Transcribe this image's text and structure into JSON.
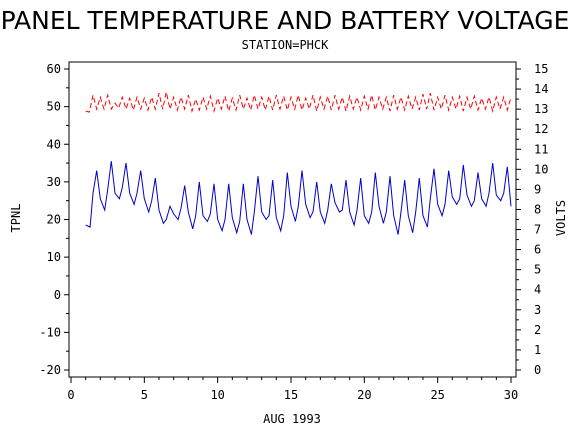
{
  "chart_data": {
    "type": "line",
    "title": "PANEL TEMPERATURE AND BATTERY VOLTAGE",
    "subtitle": "STATION=PHCK",
    "xlabel": "AUG 1993",
    "ylabel_left": "TPNL",
    "ylabel_right": "VOLTS",
    "xlim": [
      0,
      30
    ],
    "ylim_left": [
      -20,
      60
    ],
    "ylim_right": [
      0,
      15
    ],
    "x_ticks": [
      0,
      5,
      10,
      15,
      20,
      25,
      30
    ],
    "y_left_ticks": [
      -20,
      -10,
      0,
      10,
      20,
      30,
      40,
      50,
      60
    ],
    "y_right_ticks": [
      0,
      1,
      2,
      3,
      4,
      5,
      6,
      7,
      8,
      9,
      10,
      11,
      12,
      13,
      14,
      15
    ],
    "series": [
      {
        "axis": "left",
        "color": "#0000cc",
        "style": "solid",
        "points": [
          [
            1.0,
            18.5
          ],
          [
            1.3,
            18.0
          ],
          [
            1.5,
            27.0
          ],
          [
            1.75,
            33.0
          ],
          [
            2.0,
            25.5
          ],
          [
            2.3,
            22.5
          ],
          [
            2.5,
            28.0
          ],
          [
            2.75,
            35.5
          ],
          [
            3.0,
            27.0
          ],
          [
            3.3,
            25.5
          ],
          [
            3.5,
            28.5
          ],
          [
            3.75,
            35.0
          ],
          [
            4.0,
            27.0
          ],
          [
            4.3,
            24.0
          ],
          [
            4.5,
            27.0
          ],
          [
            4.75,
            33.0
          ],
          [
            5.0,
            25.5
          ],
          [
            5.3,
            22.0
          ],
          [
            5.5,
            25.0
          ],
          [
            5.75,
            31.0
          ],
          [
            6.0,
            22.5
          ],
          [
            6.3,
            19.0
          ],
          [
            6.5,
            20.0
          ],
          [
            6.75,
            23.5
          ],
          [
            7.0,
            21.5
          ],
          [
            7.3,
            20.0
          ],
          [
            7.5,
            23.0
          ],
          [
            7.75,
            29.0
          ],
          [
            8.0,
            22.0
          ],
          [
            8.3,
            17.5
          ],
          [
            8.5,
            21.0
          ],
          [
            8.75,
            30.0
          ],
          [
            9.0,
            21.0
          ],
          [
            9.3,
            19.5
          ],
          [
            9.5,
            21.5
          ],
          [
            9.75,
            29.5
          ],
          [
            10.0,
            20.0
          ],
          [
            10.3,
            17.0
          ],
          [
            10.5,
            20.0
          ],
          [
            10.75,
            29.5
          ],
          [
            11.0,
            20.5
          ],
          [
            11.3,
            16.5
          ],
          [
            11.5,
            19.5
          ],
          [
            11.75,
            29.5
          ],
          [
            12.0,
            20.0
          ],
          [
            12.3,
            16.0
          ],
          [
            12.5,
            22.0
          ],
          [
            12.75,
            31.5
          ],
          [
            13.0,
            22.0
          ],
          [
            13.3,
            20.0
          ],
          [
            13.5,
            21.0
          ],
          [
            13.75,
            30.5
          ],
          [
            14.0,
            20.5
          ],
          [
            14.3,
            17.0
          ],
          [
            14.5,
            21.0
          ],
          [
            14.75,
            32.5
          ],
          [
            15.0,
            23.5
          ],
          [
            15.3,
            19.5
          ],
          [
            15.5,
            23.5
          ],
          [
            15.75,
            33.0
          ],
          [
            16.0,
            24.0
          ],
          [
            16.3,
            20.5
          ],
          [
            16.5,
            22.0
          ],
          [
            16.75,
            30.0
          ],
          [
            17.0,
            22.0
          ],
          [
            17.3,
            19.0
          ],
          [
            17.5,
            22.5
          ],
          [
            17.75,
            29.5
          ],
          [
            18.0,
            24.5
          ],
          [
            18.3,
            22.0
          ],
          [
            18.5,
            22.5
          ],
          [
            18.75,
            30.5
          ],
          [
            19.0,
            22.0
          ],
          [
            19.3,
            18.5
          ],
          [
            19.5,
            22.5
          ],
          [
            19.75,
            31.0
          ],
          [
            20.0,
            21.0
          ],
          [
            20.3,
            19.0
          ],
          [
            20.5,
            22.0
          ],
          [
            20.75,
            32.5
          ],
          [
            21.0,
            23.5
          ],
          [
            21.3,
            19.0
          ],
          [
            21.5,
            22.0
          ],
          [
            21.75,
            31.5
          ],
          [
            22.0,
            21.0
          ],
          [
            22.3,
            16.0
          ],
          [
            22.5,
            22.0
          ],
          [
            22.75,
            30.5
          ],
          [
            23.0,
            21.0
          ],
          [
            23.3,
            16.5
          ],
          [
            23.5,
            22.0
          ],
          [
            23.75,
            31.0
          ],
          [
            24.0,
            21.0
          ],
          [
            24.3,
            18.0
          ],
          [
            24.5,
            25.5
          ],
          [
            24.75,
            33.5
          ],
          [
            25.0,
            24.0
          ],
          [
            25.3,
            21.0
          ],
          [
            25.5,
            24.0
          ],
          [
            25.75,
            33.0
          ],
          [
            26.0,
            26.0
          ],
          [
            26.3,
            24.0
          ],
          [
            26.5,
            25.5
          ],
          [
            26.75,
            34.5
          ],
          [
            27.0,
            26.5
          ],
          [
            27.3,
            23.5
          ],
          [
            27.5,
            25.0
          ],
          [
            27.75,
            32.5
          ],
          [
            28.0,
            25.5
          ],
          [
            28.3,
            23.5
          ],
          [
            28.5,
            27.0
          ],
          [
            28.75,
            35.0
          ],
          [
            29.0,
            26.5
          ],
          [
            29.3,
            25.0
          ],
          [
            29.5,
            27.0
          ],
          [
            29.75,
            34.0
          ],
          [
            30.0,
            23.5
          ]
        ]
      },
      {
        "axis": "right",
        "color": "#ff0000",
        "style": "dashed",
        "points": [
          [
            1.0,
            12.9
          ],
          [
            1.25,
            12.85
          ],
          [
            1.5,
            13.7
          ],
          [
            1.75,
            13.0
          ],
          [
            2.0,
            13.6
          ],
          [
            2.25,
            13.0
          ],
          [
            2.5,
            13.7
          ],
          [
            2.75,
            13.0
          ],
          [
            3.0,
            13.3
          ],
          [
            3.25,
            13.05
          ],
          [
            3.5,
            13.6
          ],
          [
            3.75,
            13.0
          ],
          [
            4.0,
            13.55
          ],
          [
            4.25,
            12.95
          ],
          [
            4.5,
            13.6
          ],
          [
            4.75,
            13.0
          ],
          [
            5.0,
            13.55
          ],
          [
            5.25,
            12.95
          ],
          [
            5.5,
            13.6
          ],
          [
            5.75,
            13.0
          ],
          [
            6.0,
            13.8
          ],
          [
            6.25,
            13.0
          ],
          [
            6.5,
            13.85
          ],
          [
            6.75,
            13.0
          ],
          [
            7.0,
            13.6
          ],
          [
            7.25,
            12.95
          ],
          [
            7.5,
            13.6
          ],
          [
            7.75,
            13.0
          ],
          [
            8.0,
            13.7
          ],
          [
            8.25,
            12.9
          ],
          [
            8.5,
            13.5
          ],
          [
            8.75,
            12.95
          ],
          [
            9.0,
            13.6
          ],
          [
            9.25,
            13.0
          ],
          [
            9.5,
            13.65
          ],
          [
            9.75,
            12.9
          ],
          [
            10.0,
            13.55
          ],
          [
            10.25,
            13.0
          ],
          [
            10.5,
            13.65
          ],
          [
            10.75,
            12.9
          ],
          [
            11.0,
            13.55
          ],
          [
            11.25,
            12.95
          ],
          [
            11.5,
            13.7
          ],
          [
            11.75,
            13.0
          ],
          [
            12.0,
            13.55
          ],
          [
            12.25,
            12.95
          ],
          [
            12.5,
            13.7
          ],
          [
            12.75,
            13.0
          ],
          [
            13.0,
            13.6
          ],
          [
            13.25,
            12.95
          ],
          [
            13.5,
            13.65
          ],
          [
            13.75,
            12.95
          ],
          [
            14.0,
            13.7
          ],
          [
            14.25,
            13.0
          ],
          [
            14.5,
            13.65
          ],
          [
            14.75,
            12.95
          ],
          [
            15.0,
            13.6
          ],
          [
            15.25,
            13.0
          ],
          [
            15.5,
            13.7
          ],
          [
            15.75,
            12.95
          ],
          [
            16.0,
            13.55
          ],
          [
            16.25,
            13.0
          ],
          [
            16.5,
            13.7
          ],
          [
            16.75,
            12.9
          ],
          [
            17.0,
            13.6
          ],
          [
            17.25,
            13.0
          ],
          [
            17.5,
            13.65
          ],
          [
            17.75,
            12.95
          ],
          [
            18.0,
            13.7
          ],
          [
            18.25,
            13.0
          ],
          [
            18.5,
            13.6
          ],
          [
            18.75,
            12.9
          ],
          [
            19.0,
            13.65
          ],
          [
            19.25,
            13.0
          ],
          [
            19.5,
            13.6
          ],
          [
            19.75,
            12.95
          ],
          [
            20.0,
            13.65
          ],
          [
            20.25,
            13.0
          ],
          [
            20.5,
            13.7
          ],
          [
            20.75,
            12.95
          ],
          [
            21.0,
            13.6
          ],
          [
            21.25,
            13.0
          ],
          [
            21.5,
            13.6
          ],
          [
            21.75,
            12.9
          ],
          [
            22.0,
            13.7
          ],
          [
            22.25,
            13.0
          ],
          [
            22.5,
            13.6
          ],
          [
            22.75,
            12.95
          ],
          [
            23.0,
            13.65
          ],
          [
            23.25,
            13.0
          ],
          [
            23.5,
            13.6
          ],
          [
            23.75,
            12.95
          ],
          [
            24.0,
            13.75
          ],
          [
            24.25,
            13.0
          ],
          [
            24.5,
            13.8
          ],
          [
            24.75,
            12.95
          ],
          [
            25.0,
            13.6
          ],
          [
            25.25,
            13.0
          ],
          [
            25.5,
            13.7
          ],
          [
            25.75,
            12.95
          ],
          [
            26.0,
            13.6
          ],
          [
            26.25,
            13.0
          ],
          [
            26.5,
            13.65
          ],
          [
            26.75,
            12.9
          ],
          [
            27.0,
            13.6
          ],
          [
            27.25,
            13.0
          ],
          [
            27.5,
            13.65
          ],
          [
            27.75,
            12.95
          ],
          [
            28.0,
            13.55
          ],
          [
            28.25,
            13.0
          ],
          [
            28.5,
            13.6
          ],
          [
            28.75,
            12.9
          ],
          [
            29.0,
            13.6
          ],
          [
            29.25,
            13.0
          ],
          [
            29.5,
            13.6
          ],
          [
            29.75,
            12.95
          ],
          [
            30.0,
            13.6
          ]
        ]
      }
    ],
    "grid": false
  }
}
